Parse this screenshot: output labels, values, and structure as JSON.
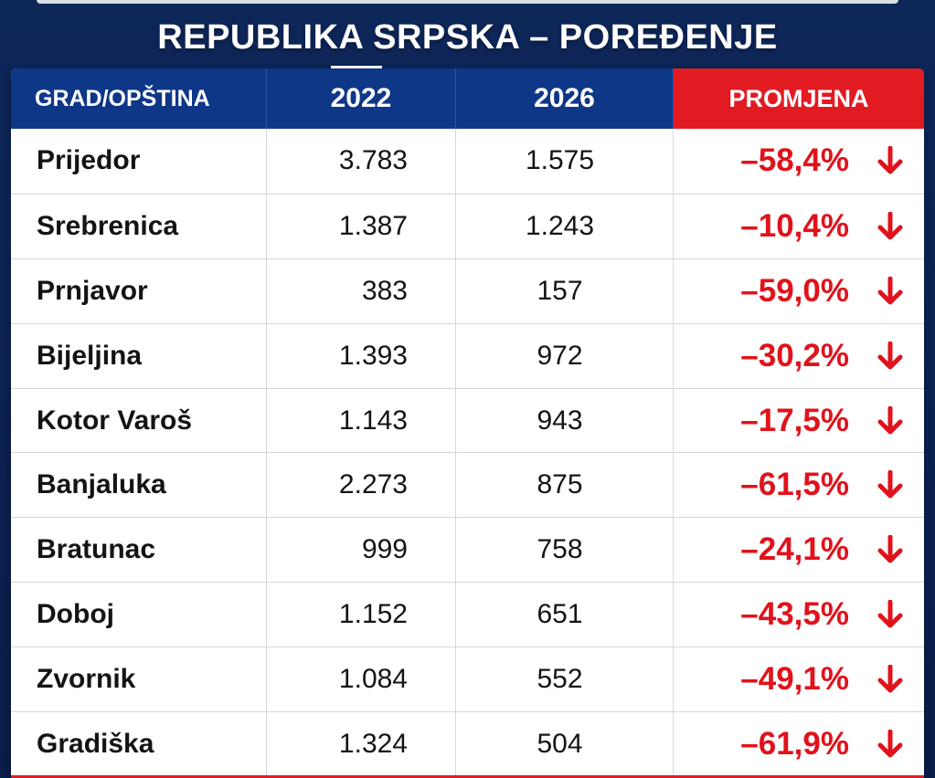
{
  "title": "REPUBLIKA SRPSKA – POREĐENJE",
  "colors": {
    "header_blue": "#0f3787",
    "header_red": "#e21b23",
    "negative": "#e0121b",
    "background": "#0b2150"
  },
  "table": {
    "headers": [
      "GRAD/OPŠTINA",
      "2022",
      "2026",
      "PROMJENA"
    ],
    "rows": [
      {
        "city": "Prijedor",
        "y2022": "3.783",
        "y2026": "1.575",
        "change": "–58,4%",
        "icon": "arrow-down-icon"
      },
      {
        "city": "Srebrenica",
        "y2022": "1.387",
        "y2026": "1.243",
        "change": "–10,4%",
        "icon": "arrow-down-icon"
      },
      {
        "city": "Prnjavor",
        "y2022": "383",
        "y2026": "157",
        "change": "–59,0%",
        "icon": "arrow-down-icon"
      },
      {
        "city": "Bijeljina",
        "y2022": "1.393",
        "y2026": "972",
        "change": "–30,2%",
        "icon": "arrow-down-icon"
      },
      {
        "city": "Kotor Varoš",
        "y2022": "1.143",
        "y2026": "943",
        "change": "–17,5%",
        "icon": "arrow-down-icon"
      },
      {
        "city": "Banjaluka",
        "y2022": "2.273",
        "y2026": "875",
        "change": "–61,5%",
        "icon": "arrow-down-icon"
      },
      {
        "city": "Bratunac",
        "y2022": "999",
        "y2026": "758",
        "change": "–24,1%",
        "icon": "arrow-down-icon"
      },
      {
        "city": "Doboj",
        "y2022": "1.152",
        "y2026": "651",
        "change": "–43,5%",
        "icon": "arrow-down-icon"
      },
      {
        "city": "Zvornik",
        "y2022": "1.084",
        "y2026": "552",
        "change": "–49,1%",
        "icon": "arrow-down-icon"
      },
      {
        "city": "Gradiška",
        "y2022": "1.324",
        "y2026": "504",
        "change": "–61,9%",
        "icon": "arrow-down-icon"
      }
    ]
  }
}
